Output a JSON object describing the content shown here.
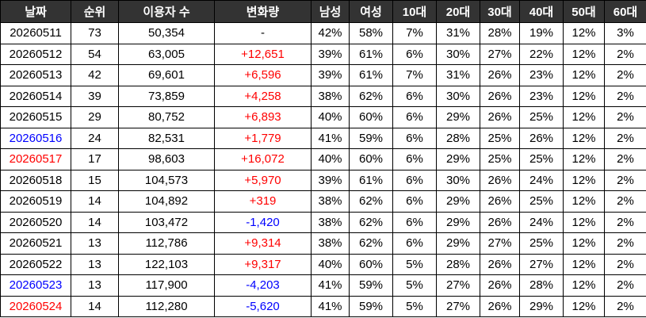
{
  "table": {
    "header": [
      "날짜",
      "순위",
      "이용자 수",
      "변화량",
      "남성",
      "여성",
      "10대",
      "20대",
      "30대",
      "40대",
      "50대",
      "60대"
    ],
    "header_background": "#333333",
    "header_color": "#ffffff",
    "positive_color": "#ff0000",
    "negative_color": "#0000ff",
    "rows": [
      [
        "20260511",
        "73",
        "50,354",
        "-",
        "42%",
        "58%",
        "7%",
        "31%",
        "28%",
        "19%",
        "12%",
        "3%"
      ],
      [
        "20260512",
        "54",
        "63,005",
        "+12,651",
        "39%",
        "61%",
        "6%",
        "30%",
        "27%",
        "22%",
        "12%",
        "2%"
      ],
      [
        "20260513",
        "42",
        "69,601",
        "+6,596",
        "39%",
        "61%",
        "7%",
        "31%",
        "26%",
        "23%",
        "12%",
        "2%"
      ],
      [
        "20260514",
        "39",
        "73,859",
        "+4,258",
        "38%",
        "62%",
        "6%",
        "30%",
        "26%",
        "23%",
        "12%",
        "2%"
      ],
      [
        "20260515",
        "29",
        "80,752",
        "+6,893",
        "40%",
        "60%",
        "6%",
        "29%",
        "26%",
        "25%",
        "12%",
        "2%"
      ],
      [
        "20260516",
        "24",
        "82,531",
        "+1,779",
        "41%",
        "59%",
        "6%",
        "28%",
        "25%",
        "26%",
        "12%",
        "2%"
      ],
      [
        "20260517",
        "17",
        "98,603",
        "+16,072",
        "40%",
        "60%",
        "6%",
        "29%",
        "25%",
        "25%",
        "12%",
        "2%"
      ],
      [
        "20260518",
        "15",
        "104,573",
        "+5,970",
        "39%",
        "61%",
        "6%",
        "30%",
        "26%",
        "24%",
        "12%",
        "2%"
      ],
      [
        "20260519",
        "14",
        "104,892",
        "+319",
        "38%",
        "62%",
        "6%",
        "29%",
        "26%",
        "25%",
        "12%",
        "2%"
      ],
      [
        "20260520",
        "14",
        "103,472",
        "-1,420",
        "38%",
        "62%",
        "6%",
        "29%",
        "26%",
        "24%",
        "12%",
        "2%"
      ],
      [
        "20260521",
        "13",
        "112,786",
        "+9,314",
        "38%",
        "62%",
        "6%",
        "29%",
        "27%",
        "25%",
        "12%",
        "2%"
      ],
      [
        "20260522",
        "13",
        "122,103",
        "+9,317",
        "40%",
        "60%",
        "5%",
        "28%",
        "26%",
        "27%",
        "12%",
        "2%"
      ],
      [
        "20260523",
        "13",
        "117,900",
        "-4,203",
        "41%",
        "59%",
        "5%",
        "27%",
        "26%",
        "28%",
        "12%",
        "2%"
      ],
      [
        "20260524",
        "14",
        "112,280",
        "-5,620",
        "41%",
        "59%",
        "5%",
        "27%",
        "26%",
        "29%",
        "12%",
        "2%"
      ]
    ],
    "date_colors": [
      "#000000",
      "#000000",
      "#000000",
      "#000000",
      "#000000",
      "#0000ff",
      "#ff0000",
      "#000000",
      "#000000",
      "#000000",
      "#000000",
      "#000000",
      "#0000ff",
      "#ff0000"
    ]
  }
}
